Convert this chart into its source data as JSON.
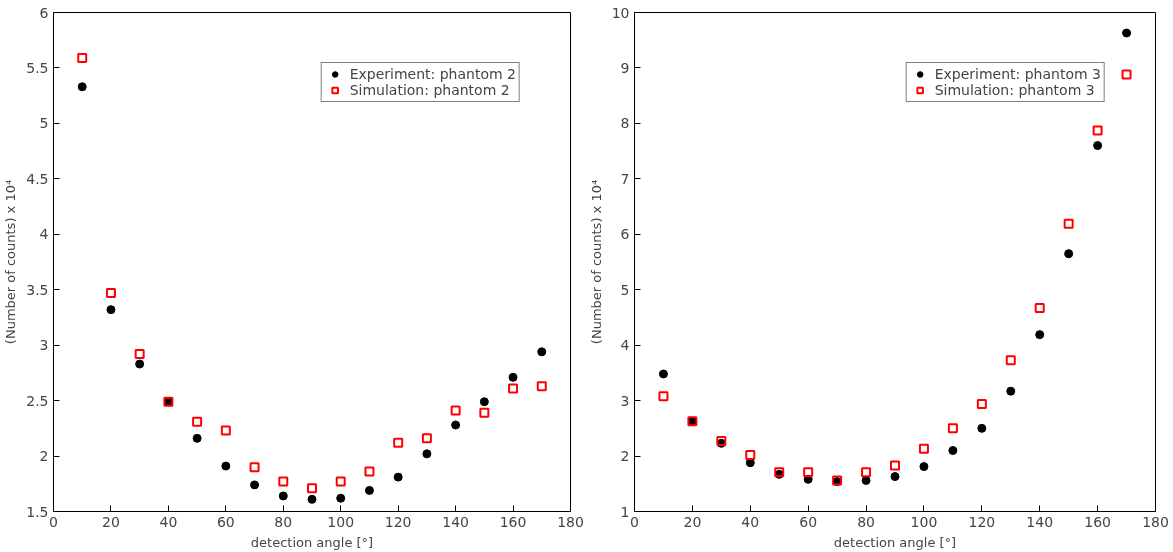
{
  "chart_data": [
    {
      "type": "scatter",
      "xlabel": "detection angle [°]",
      "ylabel": "(Number of counts) x 10⁴",
      "x": [
        10,
        20,
        30,
        40,
        50,
        60,
        70,
        80,
        90,
        100,
        110,
        120,
        130,
        140,
        150,
        160,
        170
      ],
      "xlim": [
        0,
        180
      ],
      "xticks": [
        0,
        20,
        40,
        60,
        80,
        100,
        120,
        140,
        160,
        180
      ],
      "ylim": [
        1.5,
        6
      ],
      "yticks": [
        1.5,
        2,
        2.5,
        3,
        3.5,
        4,
        4.5,
        5,
        5.5,
        6
      ],
      "grid": false,
      "legend": "top right",
      "series": [
        {
          "name": "Experiment: phantom 2",
          "color": "#000000",
          "marker": "circle",
          "values": [
            5.33,
            3.32,
            2.83,
            2.49,
            2.16,
            1.91,
            1.74,
            1.64,
            1.61,
            1.62,
            1.69,
            1.81,
            2.02,
            2.28,
            2.49,
            2.71,
            2.94
          ]
        },
        {
          "name": "Simulation: phantom 2",
          "color": "#ff0000",
          "marker": "square",
          "values": [
            5.59,
            3.47,
            2.92,
            2.49,
            2.31,
            2.23,
            1.9,
            1.77,
            1.71,
            1.77,
            1.86,
            2.12,
            2.16,
            2.41,
            2.39,
            2.61,
            2.63
          ]
        }
      ]
    },
    {
      "type": "scatter",
      "xlabel": "detection angle [°]",
      "ylabel": "(Number of counts) x 10⁴",
      "x": [
        10,
        20,
        30,
        40,
        50,
        60,
        70,
        80,
        90,
        100,
        110,
        120,
        130,
        140,
        150,
        160,
        170
      ],
      "xlim": [
        0,
        180
      ],
      "xticks": [
        0,
        20,
        40,
        60,
        80,
        100,
        120,
        140,
        160,
        180
      ],
      "ylim": [
        1,
        10
      ],
      "yticks": [
        1,
        2,
        3,
        4,
        5,
        6,
        7,
        8,
        9,
        10
      ],
      "grid": false,
      "legend": "top right",
      "series": [
        {
          "name": "Experiment: phantom 3",
          "color": "#000000",
          "marker": "circle",
          "values": [
            3.48,
            2.63,
            2.23,
            1.88,
            1.67,
            1.58,
            1.54,
            1.56,
            1.63,
            1.81,
            2.1,
            2.5,
            3.17,
            4.19,
            5.65,
            7.6,
            9.63
          ]
        },
        {
          "name": "Simulation: phantom 3",
          "color": "#ff0000",
          "marker": "square",
          "values": [
            3.08,
            2.63,
            2.27,
            2.02,
            1.71,
            1.71,
            1.56,
            1.71,
            1.83,
            2.13,
            2.5,
            2.94,
            3.73,
            4.67,
            6.19,
            7.87,
            8.88
          ]
        }
      ]
    }
  ]
}
